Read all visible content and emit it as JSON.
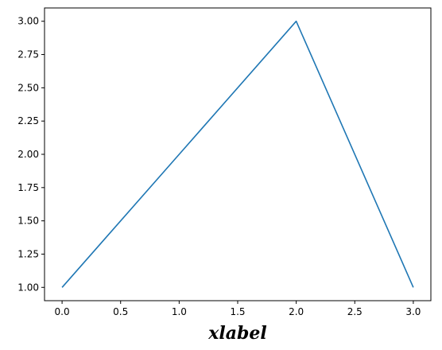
{
  "chart_data": {
    "type": "line",
    "title": "",
    "xlabel": "xlabel",
    "ylabel": "",
    "x": [
      0,
      1,
      2,
      3
    ],
    "series": [
      {
        "values": [
          1,
          2,
          3,
          1
        ],
        "color": "#1f77b4"
      }
    ],
    "xlim": [
      -0.15,
      3.15
    ],
    "ylim": [
      0.9,
      3.1
    ],
    "xticks": [
      "0.0",
      "0.5",
      "1.0",
      "1.5",
      "2.0",
      "2.5",
      "3.0"
    ],
    "yticks": [
      "1.00",
      "1.25",
      "1.50",
      "1.75",
      "2.00",
      "2.25",
      "2.50",
      "2.75",
      "3.00"
    ],
    "grid": false,
    "legend": false
  }
}
